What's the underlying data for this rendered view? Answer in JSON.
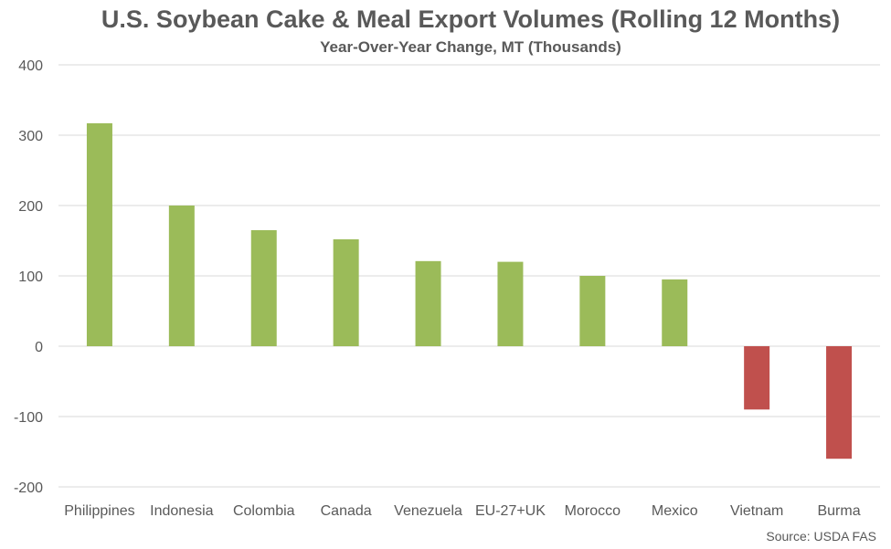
{
  "chart_data": {
    "type": "bar",
    "title": "U.S. Soybean Cake & Meal Export Volumes (Rolling 12 Months)",
    "subtitle": "Year-Over-Year Change, MT (Thousands)",
    "categories": [
      "Philippines",
      "Indonesia",
      "Colombia",
      "Canada",
      "Venezuela",
      "EU-27+UK",
      "Morocco",
      "Mexico",
      "Vietnam",
      "Burma"
    ],
    "values": [
      317,
      200,
      165,
      152,
      121,
      120,
      100,
      95,
      -90,
      -160
    ],
    "ylim": [
      -200,
      400
    ],
    "yticks": [
      400,
      300,
      200,
      100,
      0,
      -100,
      -200
    ],
    "ytick_labels": [
      "400",
      "300",
      "200",
      "100",
      "0",
      "-100",
      "-200"
    ],
    "xlabel": "",
    "ylabel": "",
    "grid": true,
    "colors": {
      "positive": "#9bbb59",
      "negative": "#c0504d",
      "grid": "#d9d9d9",
      "text": "#595959"
    }
  },
  "source": "Source: USDA FAS"
}
